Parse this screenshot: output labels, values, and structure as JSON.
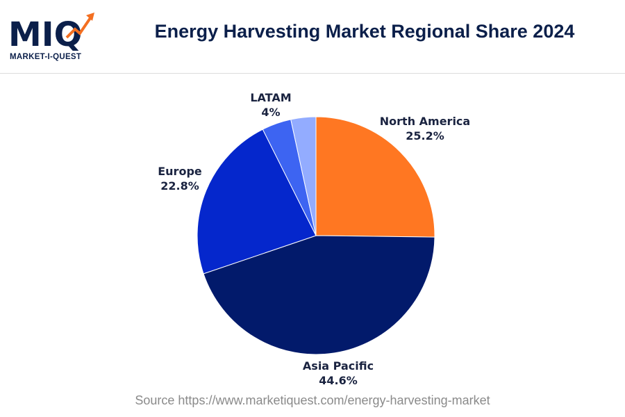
{
  "header": {
    "logo_text": "MIQ",
    "logo_subtitle": "MARKET-I-QUEST",
    "title": "Energy Harvesting Market Regional Share 2024"
  },
  "source": "Source https://www.marketiquest.com/energy-harvesting-market",
  "colors": {
    "title": "#0b1f4a",
    "logo_navy": "#0b1f4a",
    "logo_accent": "#f36f21"
  },
  "chart_data": {
    "type": "pie",
    "start_angle_deg": 0,
    "direction": "clockwise",
    "slices": [
      {
        "label": "North America",
        "value": 25.2,
        "display": "25.2%",
        "color": "#ff7722"
      },
      {
        "label": "Asia Pacific",
        "value": 44.6,
        "display": "44.6%",
        "color": "#021a6b"
      },
      {
        "label": "Europe",
        "value": 22.8,
        "display": "22.8%",
        "color": "#0527cc"
      },
      {
        "label": "LATAM",
        "value": 4.0,
        "display": "4%",
        "color": "#3d64f2"
      },
      {
        "label": "",
        "value": 3.4,
        "display": "",
        "color": "#93acff"
      }
    ],
    "legend": "none"
  }
}
